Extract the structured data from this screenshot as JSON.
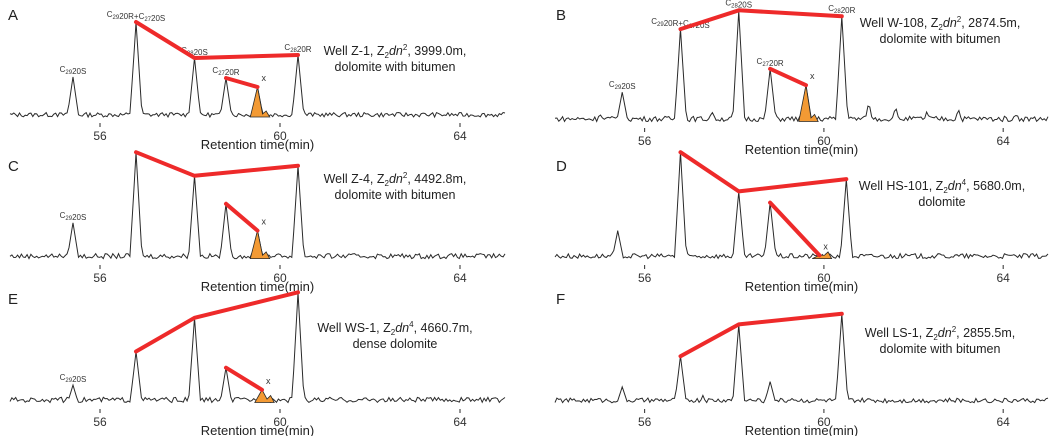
{
  "figure": {
    "xlabel": "Retention time(min)",
    "ticks": [
      56,
      60,
      64
    ]
  },
  "colors": {
    "trace": "#2a2a2a",
    "ratio_line": "#ee2a2a",
    "fill": "#f39a34"
  },
  "chart_data": [
    {
      "panel": "A",
      "type": "line",
      "xlabel": "Retention time(min)",
      "xlim": [
        54,
        65
      ],
      "caption_lines": [
        [
          "Well Z-1, Z",
          "2",
          "dn",
          "2",
          ", 3999.0m,"
        ],
        [
          "dolomite with bitumen"
        ]
      ],
      "peaks": [
        {
          "label": "C29 20S",
          "x": 55.4,
          "h": 0.43
        },
        {
          "label": "C29 20R+C27 20S",
          "x": 56.8,
          "h": 0.98
        },
        {
          "label": "C28 20S",
          "x": 58.1,
          "h": 0.62
        },
        {
          "label": "C27 20R",
          "x": 58.8,
          "h": 0.42
        },
        {
          "label": "x",
          "x": 59.5,
          "h": 0.33
        },
        {
          "label": "C28 20R",
          "x": 60.4,
          "h": 0.65
        }
      ],
      "minor_peaks": [
        [
          55.0,
          0.08
        ],
        [
          57.4,
          0.06
        ],
        [
          59.9,
          0.07
        ],
        [
          61.2,
          0.05
        ],
        [
          63.0,
          0.04
        ]
      ],
      "ratio_lines": [
        [
          56.8,
          0.98,
          58.1,
          0.62,
          60.4,
          0.65
        ],
        [
          58.8,
          0.42,
          59.5,
          0.33
        ]
      ],
      "shaded_peak": 59.5
    },
    {
      "panel": "B",
      "type": "line",
      "xlabel": "Retention time(min)",
      "xlim": [
        54,
        65
      ],
      "caption_lines": [
        [
          "Well W-108, Z",
          "2",
          "dn",
          "2",
          ", 2874.5m,"
        ],
        [
          "dolomite with bitumen"
        ]
      ],
      "peaks": [
        {
          "label": "C29 20S",
          "x": 55.5,
          "h": 0.28
        },
        {
          "label": "C29 20R+C27 20S",
          "x": 56.8,
          "h": 0.82
        },
        {
          "label": "C28 20S",
          "x": 58.1,
          "h": 0.98
        },
        {
          "label": "C27 20R",
          "x": 58.8,
          "h": 0.48
        },
        {
          "label": "x",
          "x": 59.6,
          "h": 0.34
        },
        {
          "label": "C28 20R",
          "x": 60.4,
          "h": 0.93
        }
      ],
      "minor_peaks": [
        [
          55.0,
          0.1
        ],
        [
          57.5,
          0.12
        ],
        [
          61.0,
          0.2
        ],
        [
          61.6,
          0.16
        ],
        [
          62.3,
          0.12
        ],
        [
          63.0,
          0.14
        ],
        [
          64.3,
          0.1
        ]
      ],
      "ratio_lines": [
        [
          56.8,
          0.82,
          58.1,
          0.98,
          60.4,
          0.93
        ],
        [
          58.8,
          0.48,
          59.6,
          0.34
        ]
      ],
      "shaded_peak": 59.6
    },
    {
      "panel": "C",
      "type": "line",
      "xlabel": "Retention time(min)",
      "xlim": [
        54,
        65
      ],
      "caption_lines": [
        [
          "Well Z-4, Z",
          "2",
          "dn",
          "2",
          ", 4492.8m,"
        ],
        [
          "dolomite with bitumen"
        ]
      ],
      "peaks": [
        {
          "label": "C29 20S",
          "x": 55.4,
          "h": 0.35
        },
        {
          "label": "",
          "x": 56.8,
          "h": 0.98
        },
        {
          "label": "",
          "x": 58.1,
          "h": 0.77
        },
        {
          "label": "",
          "x": 58.8,
          "h": 0.52
        },
        {
          "label": "x",
          "x": 59.5,
          "h": 0.28
        },
        {
          "label": "",
          "x": 60.4,
          "h": 0.86
        }
      ],
      "minor_peaks": [
        [
          55.0,
          0.06
        ],
        [
          57.4,
          0.05
        ],
        [
          59.9,
          0.06
        ],
        [
          61.3,
          0.04
        ]
      ],
      "ratio_lines": [
        [
          56.8,
          0.98,
          58.1,
          0.77,
          60.4,
          0.86
        ],
        [
          58.8,
          0.52,
          59.5,
          0.28
        ]
      ],
      "shaded_peak": 59.5
    },
    {
      "panel": "D",
      "type": "line",
      "xlabel": "Retention time(min)",
      "xlim": [
        54,
        65
      ],
      "caption_lines": [
        [
          "Well HS-101, Z",
          "2",
          "dn",
          "4",
          ", 5680.0m,"
        ],
        [
          "dolomite"
        ]
      ],
      "peaks": [
        {
          "label": "",
          "x": 55.4,
          "h": 0.28
        },
        {
          "label": "",
          "x": 56.8,
          "h": 0.98
        },
        {
          "label": "",
          "x": 58.1,
          "h": 0.63
        },
        {
          "label": "",
          "x": 58.8,
          "h": 0.53
        },
        {
          "label": "x",
          "x": 59.9,
          "h": 0.06
        },
        {
          "label": "",
          "x": 60.5,
          "h": 0.74
        }
      ],
      "minor_peaks": [
        [
          55.0,
          0.05
        ],
        [
          57.4,
          0.06
        ],
        [
          61.3,
          0.04
        ]
      ],
      "ratio_lines": [
        [
          56.8,
          0.98,
          58.1,
          0.63,
          60.5,
          0.74
        ],
        [
          58.8,
          0.53,
          59.9,
          0.06
        ]
      ],
      "shaded_peak": 59.9
    },
    {
      "panel": "E",
      "type": "line",
      "xlabel": "Retention time(min)",
      "xlim": [
        54,
        65
      ],
      "caption_lines": [
        [
          "Well WS-1, Z",
          "2",
          "dn",
          "4",
          ", 4660.7m,"
        ],
        [
          "dense dolomite"
        ]
      ],
      "peaks": [
        {
          "label": "C29 20S",
          "x": 55.4,
          "h": 0.18
        },
        {
          "label": "",
          "x": 56.8,
          "h": 0.47
        },
        {
          "label": "",
          "x": 58.1,
          "h": 0.76
        },
        {
          "label": "",
          "x": 58.8,
          "h": 0.33
        },
        {
          "label": "x",
          "x": 59.6,
          "h": 0.14
        },
        {
          "label": "",
          "x": 60.4,
          "h": 0.98
        }
      ],
      "minor_peaks": [
        [
          55.0,
          0.08
        ],
        [
          57.4,
          0.08
        ],
        [
          61.2,
          0.06
        ],
        [
          62.4,
          0.05
        ],
        [
          63.6,
          0.06
        ],
        [
          64.4,
          0.05
        ]
      ],
      "ratio_lines": [
        [
          56.8,
          0.47,
          58.1,
          0.76,
          60.4,
          0.98
        ],
        [
          58.8,
          0.33,
          59.6,
          0.14
        ]
      ],
      "shaded_peak": 59.6
    },
    {
      "panel": "F",
      "type": "line",
      "xlabel": "Retention time(min)",
      "xlim": [
        54,
        65
      ],
      "caption_lines": [
        [
          "Well LS-1, Z",
          "2",
          "dn",
          "2",
          ", 2855.5m,"
        ],
        [
          "dolomite with bitumen"
        ]
      ],
      "peaks": [
        {
          "label": "",
          "x": 55.5,
          "h": 0.18
        },
        {
          "label": "",
          "x": 56.8,
          "h": 0.47
        },
        {
          "label": "",
          "x": 58.1,
          "h": 0.77
        },
        {
          "label": "",
          "x": 58.8,
          "h": 0.23
        },
        {
          "label": "",
          "x": 60.4,
          "h": 0.87
        }
      ],
      "minor_peaks": [
        [
          55.0,
          0.08
        ],
        [
          57.3,
          0.1
        ],
        [
          59.3,
          0.08
        ],
        [
          61.0,
          0.07
        ],
        [
          62.4,
          0.06
        ],
        [
          63.6,
          0.07
        ],
        [
          64.5,
          0.05
        ]
      ],
      "ratio_lines": [
        [
          56.8,
          0.47,
          58.1,
          0.77,
          60.4,
          0.87
        ]
      ],
      "shaded_peak": null
    }
  ]
}
